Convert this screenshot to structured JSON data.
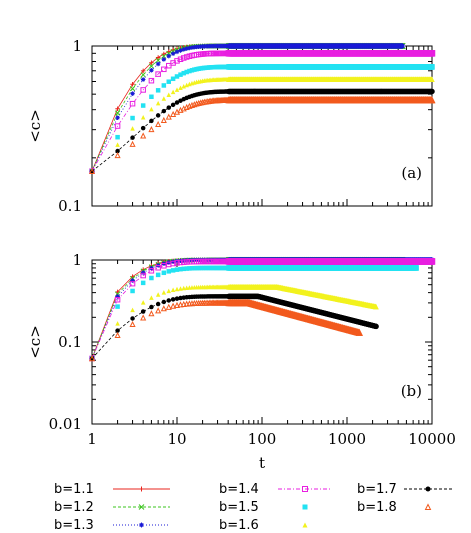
{
  "chart_data": [
    {
      "type": "scatter",
      "panel_label": "(a)",
      "ylabel": "<c>",
      "xlabel": "",
      "x_scale": "log",
      "y_scale": "log",
      "xlim": [
        1,
        10000
      ],
      "ylim": [
        0.1,
        1
      ],
      "y_tick_labels": [
        "1",
        "0.1"
      ],
      "x_tick_labels": [],
      "series": [
        {
          "name": "b=1.1",
          "color": "#e8241c",
          "marker": "plus",
          "line": "solid",
          "plateau": 1.0,
          "rate": 0.34,
          "t_end": 4500
        },
        {
          "name": "b=1.2",
          "color": "#3bc41e",
          "marker": "x",
          "line": "dash",
          "plateau": 1.0,
          "rate": 0.3,
          "t_end": 4500
        },
        {
          "name": "b=1.3",
          "color": "#1a1ad6",
          "marker": "asterisk",
          "line": "dot",
          "plateau": 1.0,
          "rate": 0.26,
          "t_end": 4500
        },
        {
          "name": "b=1.4",
          "color": "#e81ee0",
          "marker": "open-square",
          "line": "dashdot",
          "plateau": 0.9,
          "rate": 0.23,
          "t_end": 10000
        },
        {
          "name": "b=1.5",
          "color": "#22e2f2",
          "marker": "filled-square",
          "line": "none",
          "plateau": 0.74,
          "rate": 0.2,
          "t_end": 10000
        },
        {
          "name": "b=1.6",
          "color": "#f2f21e",
          "marker": "triangle",
          "line": "none",
          "plateau": 0.62,
          "rate": 0.185,
          "t_end": 10000
        },
        {
          "name": "b=1.7",
          "color": "#000000",
          "marker": "filled-circle",
          "line": "dash",
          "plateau": 0.52,
          "rate": 0.17,
          "t_end": 10000
        },
        {
          "name": "b=1.8",
          "color": "#f25a1e",
          "marker": "open-triangle",
          "line": "none",
          "plateau": 0.46,
          "rate": 0.155,
          "t_end": 10000
        }
      ],
      "start_value": 0.165
    },
    {
      "type": "scatter",
      "panel_label": "(b)",
      "ylabel": "<c>",
      "xlabel": "t",
      "x_scale": "log",
      "y_scale": "log",
      "xlim": [
        1,
        10000
      ],
      "ylim": [
        0.01,
        1
      ],
      "y_tick_labels": [
        "1",
        "0.1",
        "0.01"
      ],
      "x_tick_labels": [
        "1",
        "10",
        "100",
        "1000",
        "10000"
      ],
      "series": [
        {
          "name": "b=1.1",
          "color": "#e8241c",
          "plateau": 1.0,
          "rate": 0.46,
          "t_end": 4500,
          "decay_start": null,
          "t_final": null,
          "y_final": null
        },
        {
          "name": "b=1.2",
          "color": "#3bc41e",
          "plateau": 1.0,
          "rate": 0.42,
          "t_end": 4500,
          "decay_start": null,
          "t_final": null,
          "y_final": null
        },
        {
          "name": "b=1.3",
          "color": "#1a1ad6",
          "plateau": 1.0,
          "rate": 0.38,
          "t_end": 10000,
          "decay_start": null,
          "t_final": null,
          "y_final": null
        },
        {
          "name": "b=1.4",
          "color": "#e81ee0",
          "plateau": 0.96,
          "rate": 0.35,
          "t_end": 10000,
          "decay_start": null,
          "t_final": null,
          "y_final": null
        },
        {
          "name": "b=1.5",
          "color": "#22e2f2",
          "plateau": 0.8,
          "rate": 0.33,
          "t_end": 6500,
          "decay_start": null,
          "t_final": null,
          "y_final": null
        },
        {
          "name": "b=1.6",
          "color": "#f2f21e",
          "plateau": 0.47,
          "rate": 0.3,
          "t_end": 2200,
          "decay_start": 150,
          "t_final": 2200,
          "y_final": 0.27
        },
        {
          "name": "b=1.7",
          "color": "#000000",
          "plateau": 0.36,
          "rate": 0.29,
          "t_end": 2200,
          "decay_start": 90,
          "t_final": 2200,
          "y_final": 0.155
        },
        {
          "name": "b=1.8",
          "color": "#f25a1e",
          "plateau": 0.3,
          "rate": 0.28,
          "t_end": 1400,
          "decay_start": 70,
          "t_final": 1400,
          "y_final": 0.13
        }
      ],
      "start_value": 0.063
    }
  ],
  "legend": {
    "entries": [
      "b=1.1",
      "b=1.2",
      "b=1.3",
      "b=1.4",
      "b=1.5",
      "b=1.6",
      "b=1.7",
      "b=1.8"
    ],
    "placement": "bottom, three columns"
  }
}
